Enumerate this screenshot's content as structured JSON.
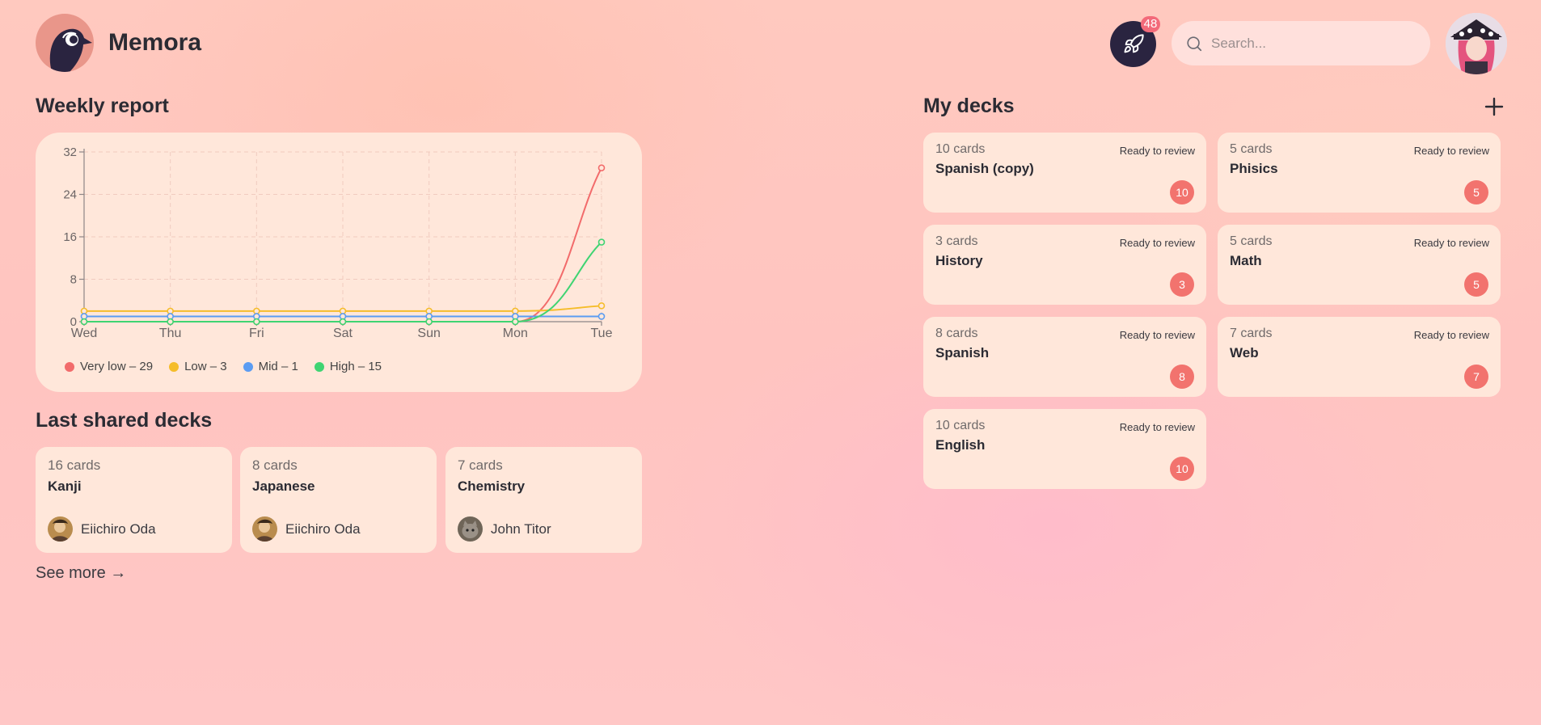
{
  "app": {
    "name": "Memora"
  },
  "header": {
    "notification_count": "48",
    "search_placeholder": "Search..."
  },
  "weekly_report": {
    "title": "Weekly report",
    "legend": [
      {
        "label": "Very low – 29",
        "color": "#f26b6b"
      },
      {
        "label": "Low – 3",
        "color": "#f5bd2a"
      },
      {
        "label": "Mid – 1",
        "color": "#5b9cf2"
      },
      {
        "label": "High – 15",
        "color": "#3fd472"
      }
    ]
  },
  "chart_data": {
    "type": "line",
    "categories": [
      "Wed",
      "Thu",
      "Fri",
      "Sat",
      "Sun",
      "Mon",
      "Tue"
    ],
    "y_ticks": [
      0,
      8,
      16,
      24,
      32
    ],
    "ylim": [
      0,
      32
    ],
    "grid": true,
    "legend_position": "bottom-left",
    "series": [
      {
        "name": "Very low – 29",
        "color": "#f26b6b",
        "values": [
          0,
          0,
          0,
          0,
          0,
          0,
          29
        ]
      },
      {
        "name": "Low – 3",
        "color": "#f5bd2a",
        "values": [
          2,
          2,
          2,
          2,
          2,
          2,
          3
        ]
      },
      {
        "name": "Mid – 1",
        "color": "#5b9cf2",
        "values": [
          1,
          1,
          1,
          1,
          1,
          1,
          1
        ]
      },
      {
        "name": "High – 15",
        "color": "#3fd472",
        "values": [
          0,
          0,
          0,
          0,
          0,
          0,
          15
        ]
      }
    ]
  },
  "last_shared": {
    "title": "Last shared decks",
    "decks": [
      {
        "count": "16 cards",
        "name": "Kanji",
        "owner": "Eiichiro Oda"
      },
      {
        "count": "8 cards",
        "name": "Japanese",
        "owner": "Eiichiro Oda"
      },
      {
        "count": "7 cards",
        "name": "Chemistry",
        "owner": "John Titor"
      }
    ],
    "see_more": "See more →"
  },
  "my_decks": {
    "title": "My decks",
    "decks": [
      {
        "count": "10 cards",
        "status": "Ready to review",
        "name": "Spanish (copy)",
        "due": "10"
      },
      {
        "count": "5 cards",
        "status": "Ready to review",
        "name": "Phisics",
        "due": "5"
      },
      {
        "count": "3 cards",
        "status": "Ready to review",
        "name": "History",
        "due": "3"
      },
      {
        "count": "5 cards",
        "status": "Ready to review",
        "name": "Math",
        "due": "5"
      },
      {
        "count": "8 cards",
        "status": "Ready to review",
        "name": "Spanish",
        "due": "8"
      },
      {
        "count": "7 cards",
        "status": "Ready to review",
        "name": "Web",
        "due": "7"
      },
      {
        "count": "10 cards",
        "status": "Ready to review",
        "name": "English",
        "due": "10"
      }
    ]
  }
}
